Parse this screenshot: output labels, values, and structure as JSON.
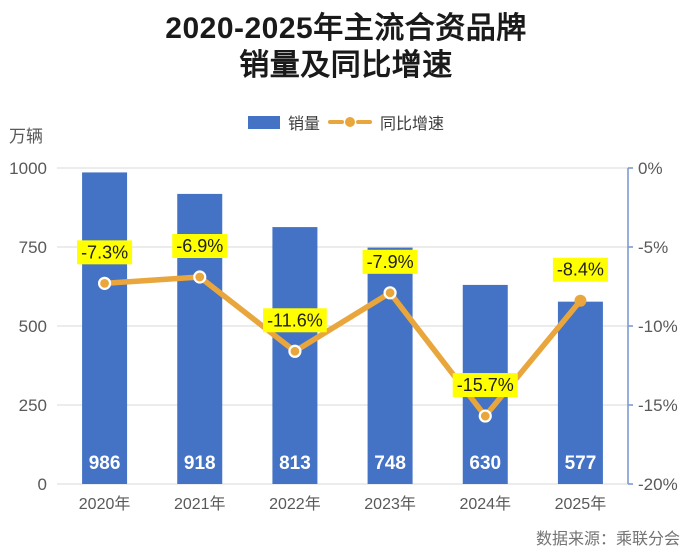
{
  "title": {
    "line1": "2020-2025年主流合资品牌",
    "line2": "销量及同比增速"
  },
  "legend": {
    "sales_label": "销量",
    "growth_label": "同比增速"
  },
  "y_axis_unit": "万辆",
  "source": "数据来源：乘联分会",
  "colors": {
    "bar": "#4472C4",
    "line": "#E9A63C",
    "marker_ring": "#FFFFFF",
    "highlight_bg": "#FFFF00",
    "growth_label_text": "#1f1f1f",
    "grid": "#D9D9D9",
    "axis_text": "#595959",
    "right_axis_line": "#7F9BD2",
    "bar_value_text": "#FFFFFF",
    "x_label_text": "#595959"
  },
  "chart_data": {
    "type": "bar",
    "subtype": "bar+line combo, dual axis",
    "title": "2020-2025年主流合资品牌销量及同比增速",
    "categories": [
      "2020年",
      "2021年",
      "2022年",
      "2023年",
      "2024年",
      "2025年"
    ],
    "series": [
      {
        "name": "销量",
        "type": "bar",
        "axis": "left",
        "values": [
          986,
          918,
          813,
          748,
          630,
          577
        ],
        "value_labels": [
          "986",
          "918",
          "813",
          "748",
          "630",
          "577"
        ]
      },
      {
        "name": "同比增速",
        "type": "line",
        "axis": "right",
        "values": [
          -7.3,
          -6.9,
          -11.6,
          -7.9,
          -15.7,
          -8.4
        ],
        "value_labels": [
          "-7.3%",
          "-6.9%",
          "-11.6%",
          "-7.9%",
          "-15.7%",
          "-8.4%"
        ]
      }
    ],
    "left_axis": {
      "unit": "万辆",
      "range": [
        0,
        1000
      ],
      "ticks": [
        "1000",
        "750",
        "500",
        "250",
        "0"
      ],
      "tick_values": [
        1000,
        750,
        500,
        250,
        0
      ]
    },
    "right_axis": {
      "range": [
        -20,
        0
      ],
      "ticks": [
        "0%",
        "-5%",
        "-10%",
        "-15%",
        "-20%"
      ],
      "tick_values": [
        0,
        -5,
        -10,
        -15,
        -20
      ]
    },
    "grid": true,
    "legend_position": "top"
  }
}
